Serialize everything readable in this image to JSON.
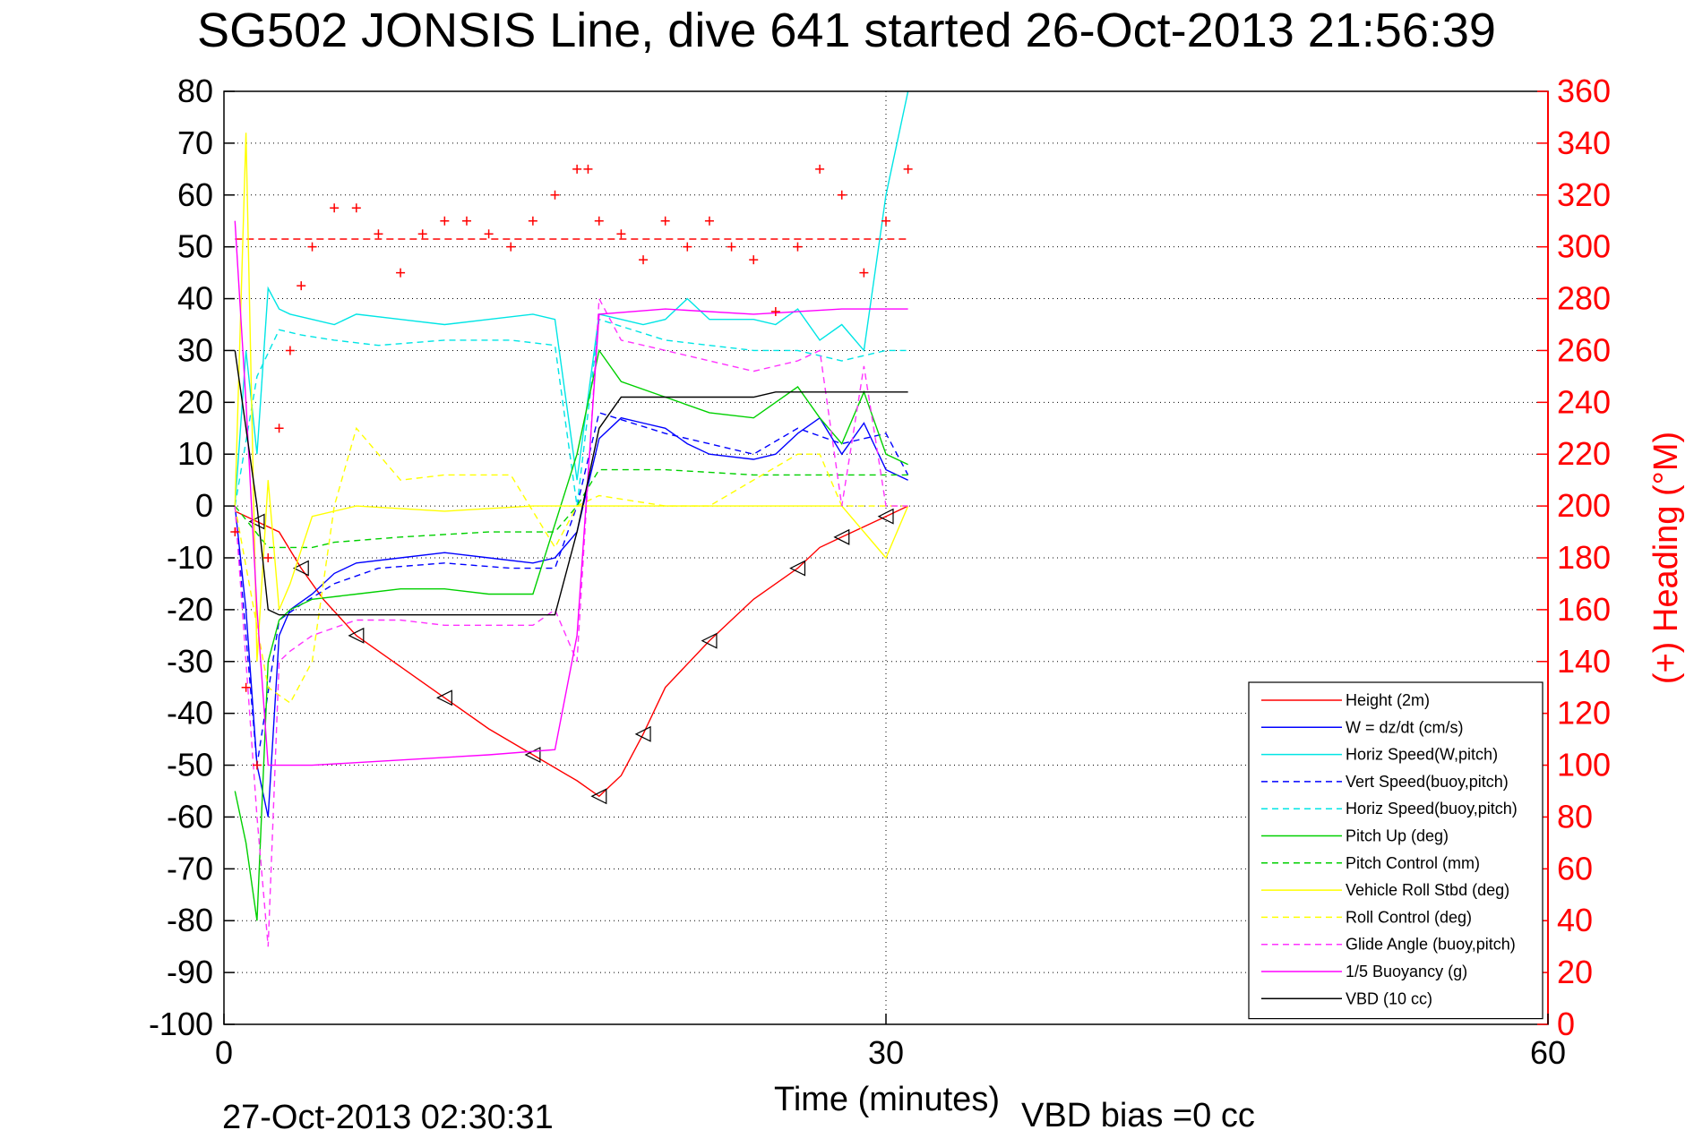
{
  "chart_data": {
    "type": "line",
    "title": "SG502 JONSIS Line, dive 641 started 26-Oct-2013 21:56:39",
    "xlabel": "Time (minutes)",
    "ylabel": "",
    "ylabel_right": "(+) Heading (°M)",
    "xlim": [
      0,
      60
    ],
    "ylim": [
      -100,
      80
    ],
    "ylim_right": [
      0,
      360
    ],
    "x_ticks": [
      "0",
      "30",
      "60"
    ],
    "y_ticks": [
      "80",
      "70",
      "60",
      "50",
      "40",
      "30",
      "20",
      "10",
      "0",
      "-10",
      "-20",
      "-30",
      "-40",
      "-50",
      "-60",
      "-70",
      "-80",
      "-90",
      "-100"
    ],
    "y_ticks_right": [
      "360",
      "340",
      "320",
      "300",
      "280",
      "260",
      "240",
      "220",
      "200",
      "180",
      "160",
      "140",
      "120",
      "100",
      "80",
      "60",
      "40",
      "20",
      "0"
    ],
    "grid": true,
    "legend_position": "lower-right",
    "footer_left": "27-Oct-2013 02:30:31",
    "footer_right": "VBD bias =0 cc",
    "heading_reference": 303,
    "series": [
      {
        "name": "Height (2m)",
        "color": "#ff0000",
        "style": "solid",
        "x": [
          0.5,
          1.5,
          2.5,
          3.5,
          4.5,
          6,
          8,
          10,
          12,
          14,
          16,
          17,
          18,
          19,
          20,
          22,
          24,
          26,
          27,
          28,
          29,
          30,
          31
        ],
        "y": [
          -1,
          -3,
          -5,
          -12,
          -18,
          -25,
          -31,
          -37,
          -43,
          -48,
          -53,
          -56,
          -52,
          -44,
          -35,
          -26,
          -18,
          -12,
          -8,
          -6,
          -4,
          -2,
          0
        ]
      },
      {
        "name": "W = dz/dt (cm/s)",
        "color": "#0000ff",
        "style": "solid",
        "x": [
          0.5,
          1,
          1.5,
          2,
          2.5,
          3,
          4,
          5,
          6,
          8,
          10,
          12,
          14,
          15,
          16,
          17,
          18,
          19,
          20,
          21,
          22,
          24,
          25,
          26,
          27,
          28,
          29,
          30,
          31
        ],
        "y": [
          0,
          -20,
          -50,
          -60,
          -25,
          -20,
          -17,
          -13,
          -11,
          -10,
          -9,
          -10,
          -11,
          -10,
          -5,
          13,
          17,
          16,
          15,
          12,
          10,
          9,
          10,
          14,
          17,
          10,
          16,
          7,
          5
        ]
      },
      {
        "name": "Horiz Speed(W,pitch)",
        "color": "#00e5e5",
        "style": "solid",
        "x": [
          0.5,
          1,
          1.5,
          2,
          2.5,
          3,
          4,
          5,
          6,
          8,
          10,
          12,
          14,
          15,
          16,
          17,
          18,
          19,
          20,
          21,
          22,
          24,
          25,
          26,
          27,
          28,
          29,
          30,
          31
        ],
        "y": [
          0,
          30,
          10,
          42,
          38,
          37,
          36,
          35,
          37,
          36,
          35,
          36,
          37,
          36,
          5,
          37,
          36,
          35,
          36,
          40,
          36,
          36,
          35,
          38,
          32,
          35,
          30,
          60,
          80
        ]
      },
      {
        "name": "Vert Speed(buoy,pitch)",
        "color": "#0000ff",
        "style": "dashed",
        "x": [
          0.5,
          1.5,
          2.5,
          3.5,
          5,
          7,
          10,
          13,
          15,
          16,
          17,
          20,
          22,
          24,
          26,
          28,
          30,
          31
        ],
        "y": [
          0,
          -50,
          -22,
          -19,
          -15,
          -12,
          -11,
          -12,
          -12,
          0,
          18,
          14,
          12,
          10,
          15,
          12,
          14,
          6
        ]
      },
      {
        "name": "Horiz Speed(buoy,pitch)",
        "color": "#00e5e5",
        "style": "dashed",
        "x": [
          0.5,
          1.5,
          2.5,
          3.5,
          5,
          7,
          10,
          13,
          15,
          16,
          17,
          20,
          22,
          24,
          26,
          28,
          30,
          31
        ],
        "y": [
          0,
          25,
          34,
          33,
          32,
          31,
          32,
          32,
          31,
          0,
          36,
          32,
          31,
          30,
          30,
          28,
          30,
          30
        ]
      },
      {
        "name": "Pitch Up (deg)",
        "color": "#00d000",
        "style": "solid",
        "x": [
          0.5,
          1,
          1.5,
          2,
          2.5,
          3,
          4,
          6,
          8,
          10,
          12,
          14,
          16,
          17,
          18,
          20,
          22,
          24,
          26,
          27,
          28,
          29,
          30,
          31
        ],
        "y": [
          -55,
          -65,
          -80,
          -30,
          -22,
          -20,
          -18,
          -17,
          -16,
          -16,
          -17,
          -17,
          10,
          30,
          24,
          21,
          18,
          17,
          23,
          17,
          12,
          22,
          10,
          8
        ]
      },
      {
        "name": "Pitch Control (mm)",
        "color": "#00d000",
        "style": "dashed",
        "x": [
          0.5,
          2,
          3,
          4,
          5,
          8,
          12,
          15,
          16,
          17,
          20,
          24,
          26,
          28,
          31
        ],
        "y": [
          0,
          -8,
          -8,
          -8,
          -7,
          -6,
          -5,
          -5,
          0,
          7,
          7,
          6,
          6,
          6,
          6
        ]
      },
      {
        "name": "Vehicle Roll Stbd (deg)",
        "color": "#ffff00",
        "style": "solid",
        "x": [
          0.5,
          1,
          1.5,
          2,
          2.5,
          3,
          4,
          6,
          10,
          14,
          16,
          17,
          20,
          24,
          26,
          28,
          30,
          31
        ],
        "y": [
          0,
          72,
          -30,
          5,
          -20,
          -15,
          -2,
          0,
          -1,
          0,
          0,
          0,
          0,
          0,
          0,
          0,
          -10,
          0
        ]
      },
      {
        "name": "Roll Control (deg)",
        "color": "#ffff00",
        "style": "dashed",
        "x": [
          0.5,
          2,
          3,
          4,
          5,
          6,
          8,
          10,
          13,
          15,
          16,
          17,
          20,
          22,
          26,
          27,
          28,
          31
        ],
        "y": [
          0,
          -35,
          -38,
          -30,
          0,
          15,
          5,
          6,
          6,
          -8,
          0,
          2,
          0,
          0,
          10,
          10,
          0,
          0
        ]
      },
      {
        "name": "Glide Angle (buoy,pitch)",
        "color": "#ff33ff",
        "style": "dashed",
        "x": [
          0.5,
          1.5,
          2,
          2.5,
          3,
          4,
          6,
          8,
          10,
          12,
          14,
          15,
          16,
          17,
          18,
          20,
          22,
          24,
          26,
          27,
          28,
          29,
          30,
          31
        ],
        "y": [
          0,
          -60,
          -85,
          -30,
          -28,
          -25,
          -22,
          -22,
          -23,
          -23,
          -23,
          -20,
          -30,
          40,
          32,
          30,
          28,
          26,
          28,
          30,
          0,
          27,
          0,
          0
        ]
      },
      {
        "name": "1/5 Buoyancy (g)",
        "color": "#ff00ff",
        "style": "solid",
        "x": [
          0.5,
          1,
          1.5,
          2,
          2.5,
          4,
          8,
          12,
          15,
          16,
          17,
          20,
          24,
          28,
          31
        ],
        "y": [
          55,
          20,
          -20,
          -50,
          -50,
          -50,
          -49,
          -48,
          -47,
          -25,
          37,
          38,
          37,
          38,
          38
        ]
      },
      {
        "name": "VBD (10 cc)",
        "color": "#000000",
        "style": "solid",
        "x": [
          0.5,
          1.5,
          2,
          2.5,
          6,
          10,
          14,
          15,
          16,
          17,
          18,
          24,
          25,
          28,
          31
        ],
        "y": [
          30,
          0,
          -20,
          -21,
          -21,
          -21,
          -21,
          -21,
          -5,
          15,
          21,
          21,
          22,
          22,
          22
        ]
      },
      {
        "name": "Heading",
        "color": "#ff0000",
        "style": "markers-plus",
        "axis": "right",
        "x": [
          0.5,
          1,
          1.5,
          2,
          2.5,
          3,
          3.5,
          4,
          5,
          6,
          7,
          8,
          9,
          10,
          11,
          12,
          13,
          14,
          15,
          16,
          16.5,
          17,
          18,
          19,
          20,
          21,
          22,
          23,
          24,
          25,
          26,
          27,
          28,
          29,
          30,
          31
        ],
        "y": [
          190,
          130,
          100,
          180,
          230,
          260,
          285,
          300,
          315,
          315,
          305,
          290,
          305,
          310,
          310,
          305,
          300,
          310,
          320,
          330,
          330,
          310,
          305,
          295,
          310,
          300,
          310,
          300,
          295,
          275,
          300,
          330,
          320,
          290,
          310,
          330
        ]
      }
    ]
  }
}
